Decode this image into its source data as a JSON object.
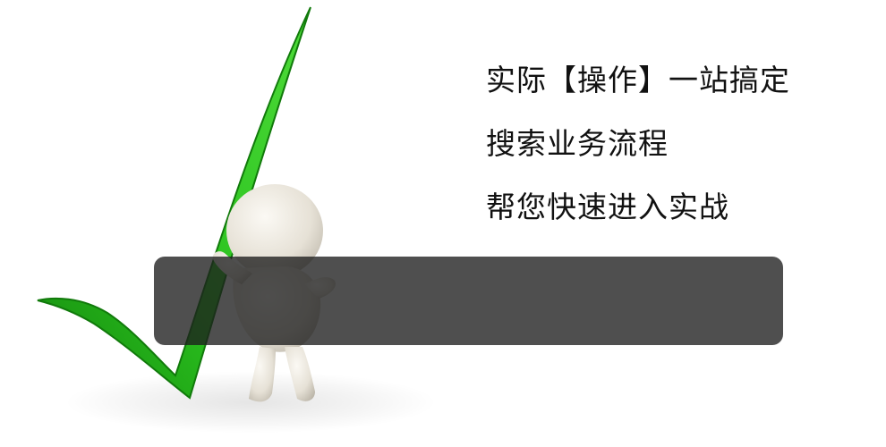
{
  "headline": {
    "lines": [
      "实际【操作】一站搞定",
      "搜索业务流程",
      "帮您快速进入实战"
    ]
  },
  "illustration": {
    "checkmark_color": "#2bc21f",
    "checkmark_dark": "#158a0e",
    "figure_color": "#ece8df"
  },
  "overlay": {
    "color": "#2a2a2a"
  }
}
